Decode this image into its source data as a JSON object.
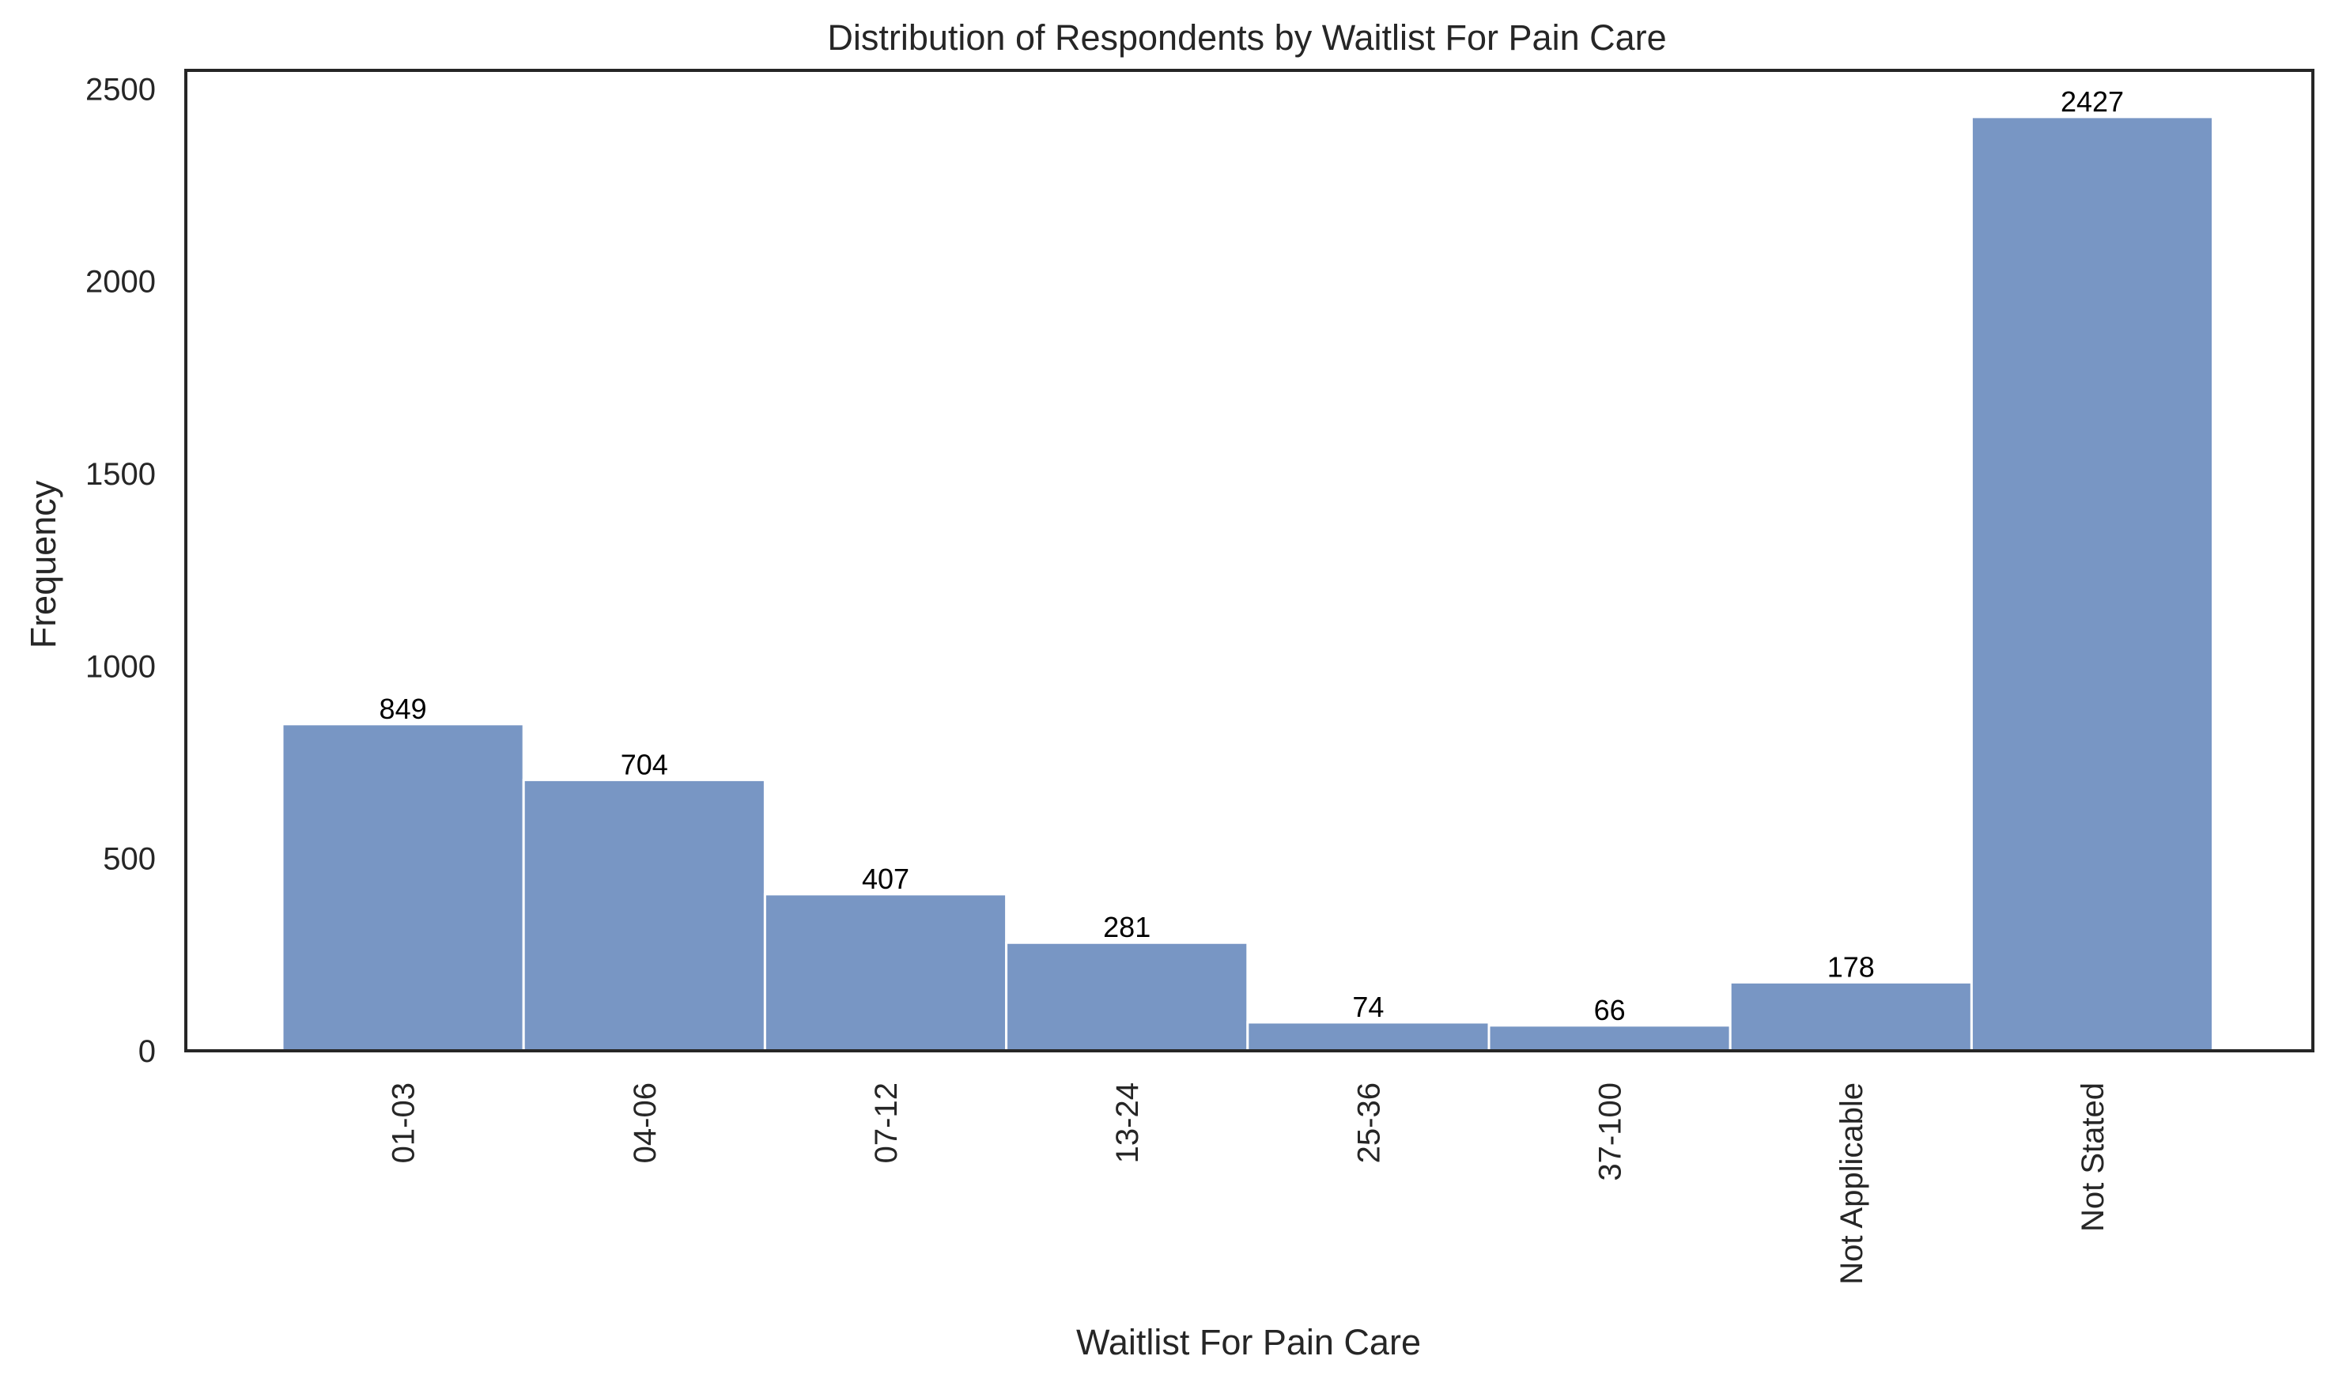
{
  "chart_data": {
    "type": "bar",
    "title": "Distribution of Respondents by Waitlist For Pain Care",
    "xlabel": "Waitlist For Pain Care",
    "ylabel": "Frequency",
    "categories": [
      "01-03",
      "04-06",
      "07-12",
      "13-24",
      "25-36",
      "37-100",
      "Not Applicable",
      "Not Stated"
    ],
    "values": [
      849,
      704,
      407,
      281,
      74,
      66,
      178,
      2427
    ],
    "data_labels": [
      "849",
      "704",
      "407",
      "281",
      "74",
      "66",
      "178",
      "2427"
    ],
    "yticks": [
      0,
      500,
      1000,
      1500,
      2000,
      2500
    ],
    "ytick_labels": [
      "0",
      "500",
      "1000",
      "1500",
      "2000",
      "2500"
    ],
    "ylim": [
      0,
      2548
    ],
    "grid": false,
    "legend": "none",
    "bar_color": "#7896c4",
    "bar_edge_color": "#ffffff",
    "axis_color": "#262626"
  }
}
